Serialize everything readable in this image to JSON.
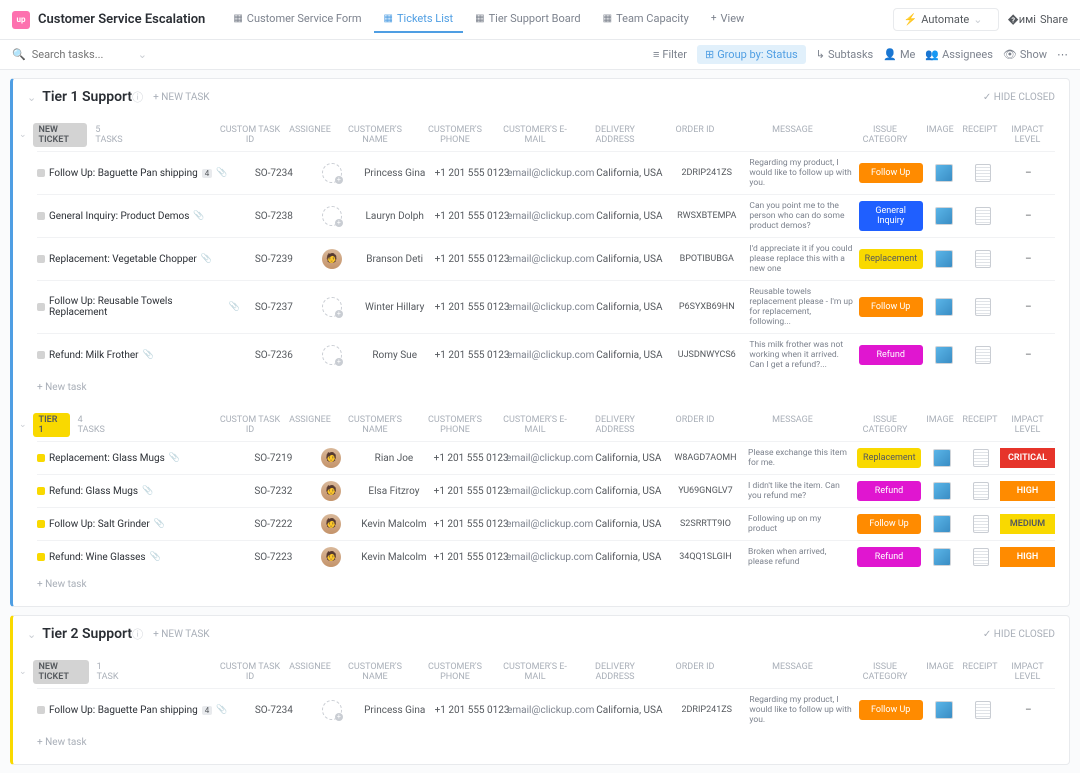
{
  "app": {
    "title": "Customer Service Escalation",
    "icon_bg": "#fd71af"
  },
  "views": [
    {
      "label": "Customer Service Form",
      "active": false
    },
    {
      "label": "Tickets List",
      "active": true
    },
    {
      "label": "Tier Support Board",
      "active": false
    },
    {
      "label": "Team Capacity",
      "active": false
    },
    {
      "label": "View",
      "active": false,
      "is_add": true
    }
  ],
  "topbar": {
    "automate": "Automate",
    "share": "Share"
  },
  "search": {
    "placeholder": "Search tasks..."
  },
  "toolbar": {
    "filter": "Filter",
    "group_by": "Group by: Status",
    "subtasks": "Subtasks",
    "me": "Me",
    "assignees": "Assignees",
    "show": "Show"
  },
  "columns": {
    "custom_task_id": "CUSTOM TASK ID",
    "assignee": "ASSIGNEE",
    "customer_name": "CUSTOMER'S NAME",
    "customer_phone": "CUSTOMER'S PHONE",
    "customer_email": "CUSTOMER'S E-MAIL",
    "delivery_address": "DELIVERY ADDRESS",
    "order_id": "ORDER ID",
    "message": "MESSAGE",
    "issue_category": "ISSUE CATEGORY",
    "image": "IMAGE",
    "receipt": "RECEIPT",
    "impact_level": "IMPACT LEVEL"
  },
  "labels": {
    "new_task": "+ NEW TASK",
    "hide_closed": "HIDE CLOSED",
    "new_task_row": "+ New task"
  },
  "category_colors": {
    "Follow Up": "#ff8b00",
    "General Inquiry": "#1f5fff",
    "Replacement": "#f9d900",
    "Refund": "#e016d0"
  },
  "impact_colors": {
    "CRITICAL": "#e6342a",
    "HIGH": "#ff8b00",
    "MEDIUM": "#f9d900"
  },
  "status_colors": {
    "NEW TICKET": "#d3d3d3",
    "TIER 1": "#f9d900"
  },
  "groups": [
    {
      "title": "Tier 1 Support",
      "class": "tier1",
      "subgroups": [
        {
          "status": "NEW TICKET",
          "status_class": "status-newticket",
          "count_label": "5 TASKS",
          "tasks": [
            {
              "name": "Follow Up: Baguette Pan shipping",
              "attach": "4",
              "dot": "#d3d3d3",
              "ctid": "SO-7234",
              "assignee": "",
              "cname": "Princess Gina",
              "phone": "+1 201 555 0123",
              "email": "email@clickup.com",
              "addr": "California, USA",
              "orderid": "2DRIP241ZS",
              "msg": "Regarding my product, I would like to follow up with you.",
              "cat": "Follow Up",
              "impact": "–"
            },
            {
              "name": "General Inquiry: Product Demos",
              "dot": "#d3d3d3",
              "ctid": "SO-7238",
              "assignee": "",
              "cname": "Lauryn Dolph",
              "phone": "+1 201 555 0123",
              "email": "email@clickup.com",
              "addr": "California, USA",
              "orderid": "RWSXBTEMPA",
              "msg": "Can you point me to the person who can do some product demos?",
              "cat": "General Inquiry",
              "impact": "–"
            },
            {
              "name": "Replacement: Vegetable Chopper",
              "dot": "#d3d3d3",
              "ctid": "SO-7239",
              "assignee": "kevin",
              "cname": "Branson Deti",
              "phone": "+1 201 555 0123",
              "email": "email@clickup.com",
              "addr": "California, USA",
              "orderid": "BPOTIBUBGA",
              "msg": "I'd appreciate it if you could please replace this with a new one",
              "cat": "Replacement",
              "impact": "–"
            },
            {
              "name": "Follow Up: Reusable Towels Replacement",
              "dot": "#d3d3d3",
              "ctid": "SO-7237",
              "assignee": "",
              "cname": "Winter Hillary",
              "phone": "+1 201 555 0123",
              "email": "email@clickup.com",
              "addr": "California, USA",
              "orderid": "P6SYXB69HN",
              "msg": "Reusable towels replacement please - I'm up for replacement, following...",
              "cat": "Follow Up",
              "impact": "–"
            },
            {
              "name": "Refund: Milk Frother",
              "dot": "#d3d3d3",
              "ctid": "SO-7236",
              "assignee": "",
              "cname": "Romy Sue",
              "phone": "+1 201 555 0123",
              "email": "email@clickup.com",
              "addr": "California, USA",
              "orderid": "UJSDNWYCS6",
              "msg": "This milk frother was not working when it arrived. Can I get a refund?...",
              "cat": "Refund",
              "impact": "–"
            }
          ]
        },
        {
          "status": "TIER 1",
          "status_class": "status-tier1",
          "count_label": "4 TASKS",
          "tasks": [
            {
              "name": "Replacement: Glass Mugs",
              "dot": "#f9d900",
              "ctid": "SO-7219",
              "assignee": "kevin",
              "cname": "Rian Joe",
              "phone": "+1 201 555 0123",
              "email": "email@clickup.com",
              "addr": "California, USA",
              "orderid": "W8AGD7AOMH",
              "msg": "Please exchange this item for me.",
              "cat": "Replacement",
              "impact": "CRITICAL"
            },
            {
              "name": "Refund: Glass Mugs",
              "dot": "#f9d900",
              "ctid": "SO-7232",
              "assignee": "kevin",
              "cname": "Elsa Fitzroy",
              "phone": "+1 201 555 0123",
              "email": "email@clickup.com",
              "addr": "California, USA",
              "orderid": "YU69GNGLV7",
              "msg": "I didn't like the item. Can you refund me?",
              "cat": "Refund",
              "impact": "HIGH"
            },
            {
              "name": "Follow Up: Salt Grinder",
              "dot": "#f9d900",
              "ctid": "SO-7222",
              "assignee": "kevin",
              "cname": "Kevin Malcolm",
              "phone": "+1 201 555 0123",
              "email": "email@clickup.com",
              "addr": "California, USA",
              "orderid": "S2SRRTT9IO",
              "msg": "Following up on my product",
              "cat": "Follow Up",
              "impact": "MEDIUM"
            },
            {
              "name": "Refund: Wine Glasses",
              "dot": "#f9d900",
              "ctid": "SO-7223",
              "assignee": "kevin",
              "cname": "Kevin Malcolm",
              "phone": "+1 201 555 0123",
              "email": "email@clickup.com",
              "addr": "California, USA",
              "orderid": "34QQ1SLGIH",
              "msg": "Broken when arrived, please refund",
              "cat": "Refund",
              "impact": "HIGH"
            }
          ]
        }
      ]
    },
    {
      "title": "Tier 2 Support",
      "class": "tier2",
      "subgroups": [
        {
          "status": "NEW TICKET",
          "status_class": "status-newticket",
          "count_label": "1 TASK",
          "tasks": [
            {
              "name": "Follow Up: Baguette Pan shipping",
              "attach": "4",
              "dot": "#d3d3d3",
              "ctid": "SO-7234",
              "assignee": "",
              "cname": "Princess Gina",
              "phone": "+1 201 555 0123",
              "email": "email@clickup.com",
              "addr": "California, USA",
              "orderid": "2DRIP241ZS",
              "msg": "Regarding my product, I would like to follow up with you.",
              "cat": "Follow Up",
              "impact": "–"
            }
          ]
        }
      ]
    }
  ]
}
